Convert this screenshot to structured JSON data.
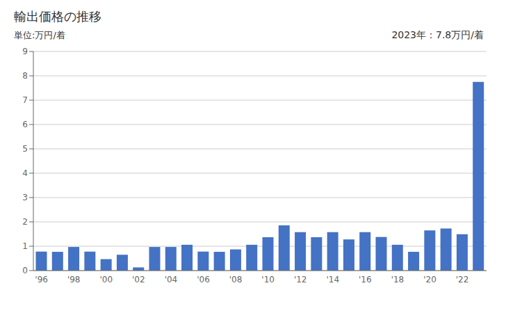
{
  "chart_data": {
    "type": "bar",
    "title": "輸出価格の推移",
    "ylabel": "単位:万円/着",
    "annotations": [
      "2023年：7.8万円/着"
    ],
    "categories": [
      "'96",
      null,
      "'98",
      null,
      "'00",
      null,
      "'02",
      null,
      "'04",
      null,
      "'06",
      null,
      "'08",
      null,
      "'10",
      null,
      "'12",
      null,
      "'14",
      null,
      "'16",
      null,
      "'18",
      null,
      "'20",
      null,
      "'22",
      null
    ],
    "values": [
      0.78,
      0.77,
      0.97,
      0.78,
      0.47,
      0.65,
      0.13,
      0.97,
      0.97,
      1.06,
      0.78,
      0.77,
      0.87,
      1.06,
      1.37,
      1.86,
      1.58,
      1.37,
      1.58,
      1.28,
      1.58,
      1.38,
      1.06,
      0.77,
      1.65,
      1.73,
      1.49,
      7.75
    ],
    "color": "#4472c4",
    "ylim": [
      0,
      9
    ],
    "yticks": [
      0,
      1,
      2,
      3,
      4,
      5,
      6,
      7,
      8,
      9
    ],
    "grid": true
  }
}
